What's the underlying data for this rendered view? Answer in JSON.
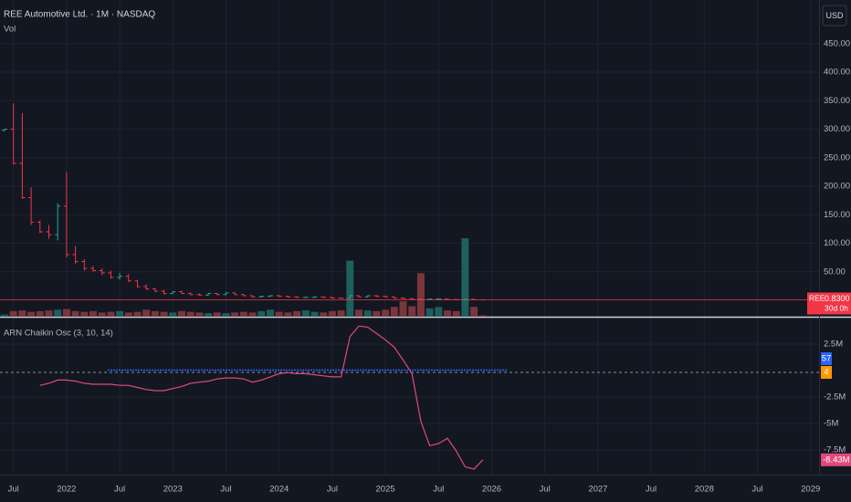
{
  "chart_data": [
    {
      "type": "ohlc",
      "title": "REE Automotive Ltd. · 1M · NASDAQ",
      "volume_label": "Vol",
      "currency": "USD",
      "x": [
        "2021-06",
        "2021-07",
        "2021-08",
        "2021-09",
        "2021-10",
        "2021-11",
        "2021-12",
        "2022-01",
        "2022-02",
        "2022-03",
        "2022-04",
        "2022-05",
        "2022-06",
        "2022-07",
        "2022-08",
        "2022-09",
        "2022-10",
        "2022-11",
        "2022-12",
        "2023-01",
        "2023-02",
        "2023-03",
        "2023-04",
        "2023-05",
        "2023-06",
        "2023-07",
        "2023-08",
        "2023-09",
        "2023-10",
        "2023-11",
        "2023-12",
        "2024-01",
        "2024-02",
        "2024-03",
        "2024-04",
        "2024-05",
        "2024-06",
        "2024-07",
        "2024-08",
        "2024-09",
        "2024-10",
        "2024-11",
        "2024-12",
        "2025-01",
        "2025-02",
        "2025-03",
        "2025-04",
        "2025-05",
        "2025-06",
        "2025-07",
        "2025-08",
        "2025-09",
        "2025-10",
        "2025-11",
        "2025-12"
      ],
      "open": [
        298,
        300,
        240,
        180,
        137,
        120,
        115,
        165,
        80,
        68,
        56,
        52,
        48,
        40,
        42,
        34,
        24,
        20,
        16,
        12,
        15,
        12,
        10,
        9,
        12,
        10,
        13,
        10,
        8,
        6,
        7,
        8,
        7,
        6,
        5,
        5,
        6,
        5,
        4,
        3.5,
        8,
        6,
        8,
        7,
        6,
        4,
        3,
        2,
        1.7,
        2.2,
        2.4,
        1.3,
        1.2,
        1.9,
        0.9
      ],
      "high": [
        300,
        345,
        328,
        198,
        140,
        132,
        170,
        225,
        95,
        72,
        60,
        56,
        52,
        48,
        46,
        36,
        28,
        22,
        18,
        16,
        17,
        14,
        12,
        13,
        13,
        14,
        14,
        11,
        9,
        8,
        9,
        9,
        8,
        7,
        6,
        7,
        7,
        6,
        5,
        10,
        9,
        9,
        9,
        8,
        7,
        5,
        4,
        3,
        2.5,
        2.6,
        2.5,
        1.5,
        2.5,
        2,
        1
      ],
      "low": [
        296,
        238,
        178,
        132,
        118,
        108,
        105,
        75,
        64,
        52,
        50,
        44,
        38,
        36,
        32,
        22,
        18,
        14,
        10,
        11,
        11,
        9,
        8,
        8,
        9,
        9,
        9,
        7,
        5,
        5,
        6,
        6,
        5,
        4,
        4,
        4,
        4,
        3,
        3,
        3,
        5,
        5,
        6,
        5,
        3,
        2,
        1.5,
        1.5,
        1.5,
        1.8,
        1.2,
        1.1,
        1.1,
        0.8,
        0.8
      ],
      "close": [
        300,
        240,
        180,
        137,
        120,
        115,
        165,
        80,
        68,
        56,
        52,
        48,
        40,
        42,
        34,
        24,
        20,
        16,
        12,
        15,
        12,
        10,
        9,
        12,
        10,
        13,
        10,
        8,
        6,
        7,
        8,
        7,
        6,
        5,
        5,
        6,
        5,
        4,
        3.5,
        8,
        6,
        8,
        7,
        6,
        4,
        3,
        2,
        1.7,
        2.2,
        2.4,
        1.3,
        1.2,
        1.9,
        0.9,
        0.83
      ],
      "volume": [
        3,
        8,
        9,
        7,
        8,
        9,
        10,
        11,
        8,
        7,
        8,
        6,
        7,
        8,
        6,
        7,
        10,
        8,
        7,
        6,
        8,
        7,
        6,
        5,
        6,
        5,
        6,
        7,
        6,
        8,
        10,
        7,
        6,
        8,
        9,
        7,
        6,
        8,
        9,
        80,
        10,
        9,
        8,
        10,
        14,
        22,
        15,
        62,
        12,
        14,
        9,
        8,
        112,
        14,
        2
      ],
      "up_color": "#26a69a",
      "down_color": "#f23645",
      "up_volume_color": "#1f5f5c",
      "down_volume_color": "#7a363d",
      "ylim": [
        -28.8,
        526.4
      ],
      "yticks": [
        {
          "value": 50,
          "label": "50.00"
        },
        {
          "value": 100,
          "label": "100.00"
        },
        {
          "value": 150,
          "label": "150.00"
        },
        {
          "value": 200,
          "label": "200.00"
        },
        {
          "value": 250,
          "label": "250.00"
        },
        {
          "value": 300,
          "label": "300.00"
        },
        {
          "value": 350,
          "label": "350.00"
        },
        {
          "value": 400,
          "label": "400.00"
        },
        {
          "value": 450,
          "label": "450.00"
        }
      ],
      "xticks": [
        {
          "value": "2021-07",
          "label": "Jul"
        },
        {
          "value": "2022-01",
          "label": "2022"
        },
        {
          "value": "2022-07",
          "label": "Jul"
        },
        {
          "value": "2023-01",
          "label": "2023"
        },
        {
          "value": "2023-07",
          "label": "Jul"
        },
        {
          "value": "2024-01",
          "label": "2024"
        },
        {
          "value": "2024-07",
          "label": "Jul"
        },
        {
          "value": "2025-01",
          "label": "2025"
        },
        {
          "value": "2025-07",
          "label": "Jul"
        },
        {
          "value": "2026-01",
          "label": "2026"
        },
        {
          "value": "2026-07",
          "label": "Jul"
        },
        {
          "value": "2027-01",
          "label": "2027"
        },
        {
          "value": "2027-07",
          "label": "Jul"
        },
        {
          "value": "2028-01",
          "label": "2028"
        },
        {
          "value": "2028-07",
          "label": "Jul"
        },
        {
          "value": "2029-01",
          "label": "2029"
        }
      ],
      "grid": true,
      "last_price": {
        "symbol": "REE",
        "value_label": "0.8300",
        "countdown": "30d 0h"
      }
    },
    {
      "type": "line",
      "title": "ARN Chaikin Osc (3, 10, 14)",
      "color": "#e0497a",
      "x": [
        "2021-06",
        "2021-07",
        "2021-08",
        "2021-09",
        "2021-10",
        "2021-11",
        "2021-12",
        "2022-01",
        "2022-02",
        "2022-03",
        "2022-04",
        "2022-05",
        "2022-06",
        "2022-07",
        "2022-08",
        "2022-09",
        "2022-10",
        "2022-11",
        "2022-12",
        "2023-01",
        "2023-02",
        "2023-03",
        "2023-04",
        "2023-05",
        "2023-06",
        "2023-07",
        "2023-08",
        "2023-09",
        "2023-10",
        "2023-11",
        "2023-12",
        "2024-01",
        "2024-02",
        "2024-03",
        "2024-04",
        "2024-05",
        "2024-06",
        "2024-07",
        "2024-08",
        "2024-09",
        "2024-10",
        "2024-11",
        "2024-12",
        "2025-01",
        "2025-02",
        "2025-03",
        "2025-04",
        "2025-05",
        "2025-06",
        "2025-07",
        "2025-08",
        "2025-09",
        "2025-10",
        "2025-11",
        "2025-12"
      ],
      "values": [
        null,
        null,
        null,
        null,
        -1.4,
        -1.2,
        -0.9,
        -0.9,
        -1.0,
        -1.2,
        -1.3,
        -1.3,
        -1.3,
        -1.4,
        -1.4,
        -1.6,
        -1.8,
        -1.9,
        -1.9,
        -1.7,
        -1.5,
        -1.2,
        -1.1,
        -1.0,
        -0.8,
        -0.7,
        -0.7,
        -0.8,
        -1.1,
        -0.9,
        -0.6,
        -0.3,
        -0.2,
        -0.3,
        -0.3,
        -0.4,
        -0.5,
        -0.6,
        -0.6,
        3.2,
        4.2,
        4.1,
        3.5,
        2.9,
        2.2,
        1.0,
        -0.3,
        -4.8,
        -7.1,
        -6.9,
        -6.4,
        -7.6,
        -9.1,
        -9.3,
        -8.43
      ],
      "last_value_label": "-8.43M",
      "ylim": [
        -9.83,
        4.91
      ],
      "yticks": [
        {
          "value": -7.5,
          "label": "-7.5M"
        },
        {
          "value": -5,
          "label": "-5M"
        },
        {
          "value": -2.5,
          "label": "-2.5M"
        },
        {
          "value": 2.5,
          "label": "2.5M"
        }
      ],
      "badges": [
        {
          "label": "57",
          "color": "#2962ff"
        },
        {
          "label": "4",
          "color": "#ff9800"
        }
      ]
    }
  ]
}
